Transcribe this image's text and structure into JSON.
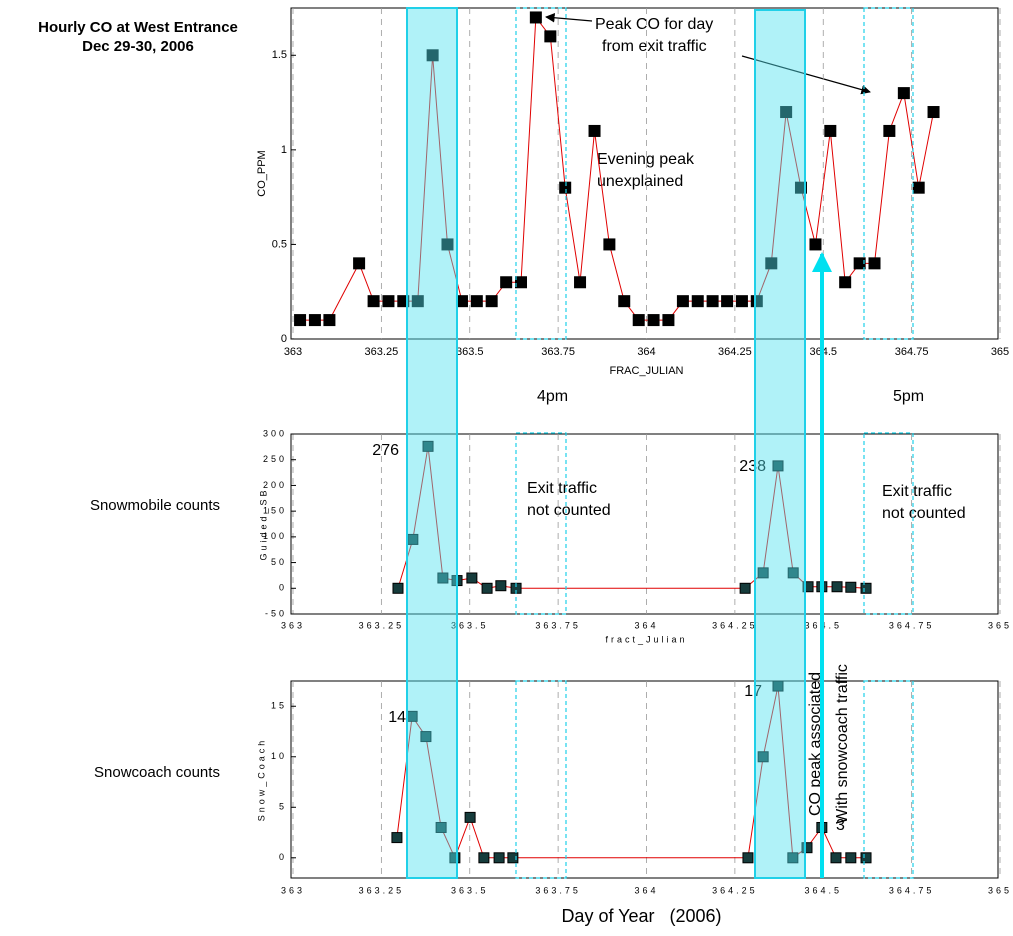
{
  "chart_data": [
    {
      "type": "line",
      "title": [
        "Hourly CO at West Entrance",
        "Dec 29-30, 2006"
      ],
      "xlabel": "FRAC_JULIAN",
      "ylabel": "CO_PPM",
      "x": [
        363.02,
        363.062,
        363.103,
        363.187,
        363.228,
        363.27,
        363.312,
        363.353,
        363.395,
        363.437,
        363.478,
        363.52,
        363.562,
        363.603,
        363.645,
        363.687,
        363.728,
        363.77,
        363.812,
        363.853,
        363.895,
        363.937,
        363.978,
        364.02,
        364.062,
        364.103,
        364.145,
        364.187,
        364.228,
        364.27,
        364.312,
        364.353,
        364.395,
        364.437,
        364.478,
        364.52,
        364.562,
        364.603,
        364.645,
        364.687,
        364.728,
        364.77,
        364.812
      ],
      "values": [
        0.1,
        0.1,
        0.1,
        0.4,
        0.2,
        0.2,
        0.2,
        0.2,
        1.5,
        0.5,
        0.2,
        0.2,
        0.2,
        0.3,
        0.3,
        1.7,
        1.6,
        0.8,
        0.3,
        1.1,
        0.5,
        0.2,
        0.1,
        0.1,
        0.1,
        0.2,
        0.2,
        0.2,
        0.2,
        0.2,
        0.2,
        0.4,
        1.2,
        0.8,
        0.5,
        1.1,
        0.3,
        0.4,
        0.4,
        1.1,
        1.3,
        0.8,
        1.2
      ],
      "color": "#e00000",
      "marker_color": "#000000",
      "xlim": [
        363,
        365
      ],
      "ylim": [
        0,
        1.75
      ],
      "xticks": [
        363,
        363.25,
        363.5,
        363.75,
        364,
        364.25,
        364.5,
        364.75,
        365
      ],
      "yticks": [
        0,
        0.5,
        1,
        1.5
      ],
      "grid": true,
      "annotations": [
        "Peak CO for day",
        "from exit traffic",
        "Evening peak",
        "unexplained",
        "4pm",
        "5pm"
      ]
    },
    {
      "type": "line",
      "title": "Snowmobile counts",
      "xlabel": "fract_Julian",
      "ylabel": "Guided_SB",
      "x": [
        363.297,
        363.339,
        363.382,
        363.424,
        363.464,
        363.506,
        363.549,
        363.588,
        363.631,
        364.279,
        364.33,
        364.372,
        364.415,
        364.457,
        364.496,
        364.539,
        364.578,
        364.621
      ],
      "values": [
        0,
        95,
        276,
        20,
        15,
        20,
        0,
        5,
        0,
        0,
        30,
        238,
        30,
        3,
        3,
        3,
        2,
        0
      ],
      "color": "#e00000",
      "marker_color": "#163c3c",
      "xlim": [
        363,
        365
      ],
      "ylim": [
        -50,
        300
      ],
      "xticks": [
        363,
        363.25,
        363.5,
        363.75,
        364,
        364.25,
        364.5,
        364.75,
        365
      ],
      "yticks": [
        -50,
        0,
        50,
        100,
        150,
        200,
        250,
        300
      ],
      "grid": true,
      "annotations": [
        "Exit traffic",
        "not counted",
        "Exit traffic",
        "not counted"
      ]
    },
    {
      "type": "line",
      "title": "Snowcoach counts",
      "xlabel": "Day of Year   (2006)",
      "ylabel": "Snow_Coach",
      "x": [
        363.294,
        363.337,
        363.376,
        363.419,
        363.458,
        363.501,
        363.54,
        363.583,
        363.622,
        364.287,
        364.33,
        364.372,
        364.414,
        364.454,
        364.496,
        364.536,
        364.578,
        364.621
      ],
      "values": [
        2,
        14,
        12,
        3,
        0,
        4,
        0,
        0,
        0,
        0,
        10,
        17,
        0,
        1,
        3,
        0,
        0,
        0
      ],
      "color": "#e00000",
      "marker_color": "#163c3c",
      "xlim": [
        363,
        365
      ],
      "ylim": [
        -2,
        17.5
      ],
      "xticks": [
        363,
        363.25,
        363.5,
        363.75,
        364,
        364.25,
        364.5,
        364.75,
        365
      ],
      "yticks": [
        0,
        5,
        10,
        15
      ],
      "grid": true,
      "annotations": [
        "CO peak associated",
        "With snowcoach traffic"
      ]
    }
  ]
}
